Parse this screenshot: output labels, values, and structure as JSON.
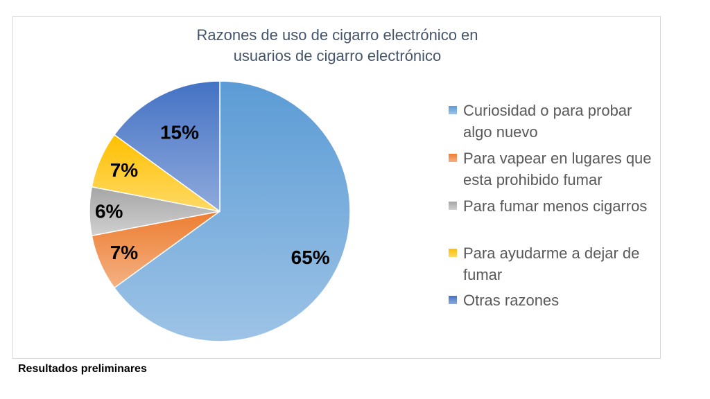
{
  "chart_data": {
    "type": "pie",
    "title_lines": [
      "Razones de uso de cigarro electrónico en",
      "usuarios de cigarro electrónico"
    ],
    "categories": [
      "Curiosidad o para probar algo nuevo",
      "Para vapear en lugares que esta prohibido fumar",
      "Para fumar menos cigarros",
      "Para ayudarme a dejar de fumar",
      "Otras razones"
    ],
    "legend_lines": [
      [
        "Curiosidad o para probar",
        "algo nuevo"
      ],
      [
        "Para vapear en lugares que",
        "esta prohibido fumar"
      ],
      [
        "Para fumar menos cigarros"
      ],
      [
        "Para ayudarme a dejar de",
        "fumar"
      ],
      [
        "Otras razones"
      ]
    ],
    "values": [
      65,
      7,
      6,
      7,
      15
    ],
    "data_labels": [
      "65%",
      "7%",
      "6%",
      "7%",
      "15%"
    ],
    "colors": [
      [
        "#5b9bd5",
        "#9dc3e6"
      ],
      [
        "#ed7d31",
        "#f4b183"
      ],
      [
        "#a5a5a5",
        "#d0d0d0"
      ],
      [
        "#ffc000",
        "#ffd966"
      ],
      [
        "#4472c4",
        "#8faadc"
      ]
    ],
    "legend_colors": [
      "#5b9bd5",
      "#ed7d31",
      "#a5a5a5",
      "#ffc000",
      "#4472c4"
    ],
    "legend_position": "right"
  },
  "footnote": "Resultados preliminares"
}
